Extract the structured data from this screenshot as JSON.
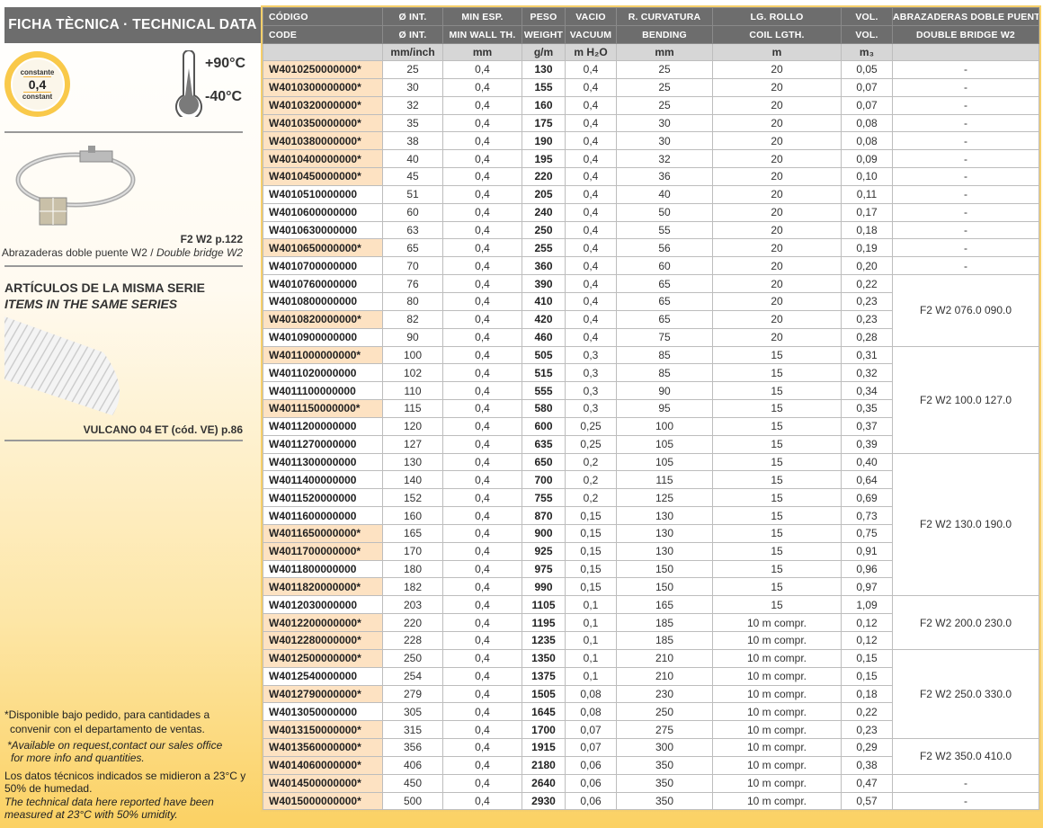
{
  "left_panel": {
    "title": "FICHA TÈCNICA · TECHNICAL DATA",
    "badge": {
      "top": "constante",
      "value": "0,4",
      "bottom": "constant"
    },
    "temp_max": "+90°C",
    "temp_min": "-40°C",
    "accessory": {
      "code": "F2 W2  p.122",
      "desc_es": "Abrazaderas doble puente W2 / ",
      "desc_en": "Double bridge W2"
    },
    "series_heading_es": "ARTÍCULOS DE LA MISMA SERIE",
    "series_heading_en": "ITEMS IN THE SAME SERIES",
    "series_item": "VULCANO 04 ET (cód. VE) p.86",
    "footnote_es_1": "*Disponible bajo pedido, para cantidades a",
    "footnote_es_2": "convenir con el departamento de ventas.",
    "footnote_en_1": "*Available on request,contact our sales office",
    "footnote_en_2": "for more info and quantities.",
    "note_es": "Los datos técnicos indicados se midieron a 23°C y 50% de humedad.",
    "note_en": "The technical data here reported have been measured at 23°C with 50% umidity."
  },
  "colors": {
    "header": "#6d6d6d",
    "units_row": "#d6d6d6",
    "highlight": "#fde2c2",
    "badge": "#f9c94a"
  },
  "table": {
    "header_es": [
      "CÓDIGO",
      "Ø INT.",
      "MIN ESP.",
      "PESO",
      "VACIO",
      "R. CURVATURA",
      "LG. ROLLO",
      "VOL.",
      "ABRAZADERAS DOBLE PUENTE W2"
    ],
    "header_en": [
      "CODE",
      "Ø INT.",
      "MIN WALL TH.",
      "WEIGHT",
      "VACUUM",
      "BENDING",
      "COIL LGTH.",
      "VOL.",
      "DOUBLE BRIDGE W2"
    ],
    "units": [
      "",
      "mm/inch",
      "mm",
      "g/m",
      "m H₂O",
      "mm",
      "m",
      "m₃",
      ""
    ],
    "rows": [
      [
        "W4010250000000*",
        "25",
        "0,4",
        "130",
        "0,4",
        "25",
        "20",
        "0,05"
      ],
      [
        "W4010300000000*",
        "30",
        "0,4",
        "155",
        "0,4",
        "25",
        "20",
        "0,07"
      ],
      [
        "W4010320000000*",
        "32",
        "0,4",
        "160",
        "0,4",
        "25",
        "20",
        "0,07"
      ],
      [
        "W4010350000000*",
        "35",
        "0,4",
        "175",
        "0,4",
        "30",
        "20",
        "0,08"
      ],
      [
        "W4010380000000*",
        "38",
        "0,4",
        "190",
        "0,4",
        "30",
        "20",
        "0,08"
      ],
      [
        "W4010400000000*",
        "40",
        "0,4",
        "195",
        "0,4",
        "32",
        "20",
        "0,09"
      ],
      [
        "W4010450000000*",
        "45",
        "0,4",
        "220",
        "0,4",
        "36",
        "20",
        "0,10"
      ],
      [
        "W4010510000000",
        "51",
        "0,4",
        "205",
        "0,4",
        "40",
        "20",
        "0,11"
      ],
      [
        "W4010600000000",
        "60",
        "0,4",
        "240",
        "0,4",
        "50",
        "20",
        "0,17"
      ],
      [
        "W4010630000000",
        "63",
        "0,4",
        "250",
        "0,4",
        "55",
        "20",
        "0,18"
      ],
      [
        "W4010650000000*",
        "65",
        "0,4",
        "255",
        "0,4",
        "56",
        "20",
        "0,19"
      ],
      [
        "W4010700000000",
        "70",
        "0,4",
        "360",
        "0,4",
        "60",
        "20",
        "0,20"
      ],
      [
        "W4010760000000",
        "76",
        "0,4",
        "390",
        "0,4",
        "65",
        "20",
        "0,22"
      ],
      [
        "W4010800000000",
        "80",
        "0,4",
        "410",
        "0,4",
        "65",
        "20",
        "0,23"
      ],
      [
        "W4010820000000*",
        "82",
        "0,4",
        "420",
        "0,4",
        "65",
        "20",
        "0,23"
      ],
      [
        "W4010900000000",
        "90",
        "0,4",
        "460",
        "0,4",
        "75",
        "20",
        "0,28"
      ],
      [
        "W4011000000000*",
        "100",
        "0,4",
        "505",
        "0,3",
        "85",
        "15",
        "0,31"
      ],
      [
        "W4011020000000",
        "102",
        "0,4",
        "515",
        "0,3",
        "85",
        "15",
        "0,32"
      ],
      [
        "W4011100000000",
        "110",
        "0,4",
        "555",
        "0,3",
        "90",
        "15",
        "0,34"
      ],
      [
        "W4011150000000*",
        "115",
        "0,4",
        "580",
        "0,3",
        "95",
        "15",
        "0,35"
      ],
      [
        "W4011200000000",
        "120",
        "0,4",
        "600",
        "0,25",
        "100",
        "15",
        "0,37"
      ],
      [
        "W4011270000000",
        "127",
        "0,4",
        "635",
        "0,25",
        "105",
        "15",
        "0,39"
      ],
      [
        "W4011300000000",
        "130",
        "0,4",
        "650",
        "0,2",
        "105",
        "15",
        "0,40"
      ],
      [
        "W4011400000000",
        "140",
        "0,4",
        "700",
        "0,2",
        "115",
        "15",
        "0,64"
      ],
      [
        "W4011520000000",
        "152",
        "0,4",
        "755",
        "0,2",
        "125",
        "15",
        "0,69"
      ],
      [
        "W4011600000000",
        "160",
        "0,4",
        "870",
        "0,15",
        "130",
        "15",
        "0,73"
      ],
      [
        "W4011650000000*",
        "165",
        "0,4",
        "900",
        "0,15",
        "130",
        "15",
        "0,75"
      ],
      [
        "W4011700000000*",
        "170",
        "0,4",
        "925",
        "0,15",
        "130",
        "15",
        "0,91"
      ],
      [
        "W4011800000000",
        "180",
        "0,4",
        "975",
        "0,15",
        "150",
        "15",
        "0,96"
      ],
      [
        "W4011820000000*",
        "182",
        "0,4",
        "990",
        "0,15",
        "150",
        "15",
        "0,97"
      ],
      [
        "W4012030000000",
        "203",
        "0,4",
        "1105",
        "0,1",
        "165",
        "15",
        "1,09"
      ],
      [
        "W4012200000000*",
        "220",
        "0,4",
        "1195",
        "0,1",
        "185",
        "10 m compr.",
        "0,12"
      ],
      [
        "W4012280000000*",
        "228",
        "0,4",
        "1235",
        "0,1",
        "185",
        "10 m compr.",
        "0,12"
      ],
      [
        "W4012500000000*",
        "250",
        "0,4",
        "1350",
        "0,1",
        "210",
        "10 m compr.",
        "0,15"
      ],
      [
        "W4012540000000",
        "254",
        "0,4",
        "1375",
        "0,1",
        "210",
        "10 m compr.",
        "0,15"
      ],
      [
        "W4012790000000*",
        "279",
        "0,4",
        "1505",
        "0,08",
        "230",
        "10 m compr.",
        "0,18"
      ],
      [
        "W4013050000000",
        "305",
        "0,4",
        "1645",
        "0,08",
        "250",
        "10 m compr.",
        "0,22"
      ],
      [
        "W4013150000000*",
        "315",
        "0,4",
        "1700",
        "0,07",
        "275",
        "10 m compr.",
        "0,23"
      ],
      [
        "W4013560000000*",
        "356",
        "0,4",
        "1915",
        "0,07",
        "300",
        "10 m compr.",
        "0,29"
      ],
      [
        "W4014060000000*",
        "406",
        "0,4",
        "2180",
        "0,06",
        "350",
        "10 m compr.",
        "0,38"
      ],
      [
        "W4014500000000*",
        "450",
        "0,4",
        "2640",
        "0,06",
        "350",
        "10 m compr.",
        "0,47"
      ],
      [
        "W4015000000000*",
        "500",
        "0,4",
        "2930",
        "0,06",
        "350",
        "10 m compr.",
        "0,57"
      ]
    ],
    "bridge_groups": [
      {
        "label": "-",
        "rows": 1
      },
      {
        "label": "-",
        "rows": 1
      },
      {
        "label": "-",
        "rows": 1
      },
      {
        "label": "-",
        "rows": 1
      },
      {
        "label": "-",
        "rows": 1
      },
      {
        "label": "-",
        "rows": 1
      },
      {
        "label": "-",
        "rows": 1
      },
      {
        "label": "-",
        "rows": 1
      },
      {
        "label": "-",
        "rows": 1
      },
      {
        "label": "-",
        "rows": 1
      },
      {
        "label": "-",
        "rows": 1
      },
      {
        "label": "-",
        "rows": 1
      },
      {
        "label": "F2 W2 076.0 090.0",
        "rows": 4
      },
      {
        "label": "F2 W2 100.0 127.0",
        "rows": 6
      },
      {
        "label": "F2 W2 130.0 190.0",
        "rows": 8
      },
      {
        "label": "F2 W2 200.0 230.0",
        "rows": 3
      },
      {
        "label": "F2 W2 250.0 330.0",
        "rows": 5
      },
      {
        "label": "F2 W2 350.0 410.0",
        "rows": 2
      },
      {
        "label": "-",
        "rows": 1
      },
      {
        "label": "-",
        "rows": 1
      }
    ]
  }
}
